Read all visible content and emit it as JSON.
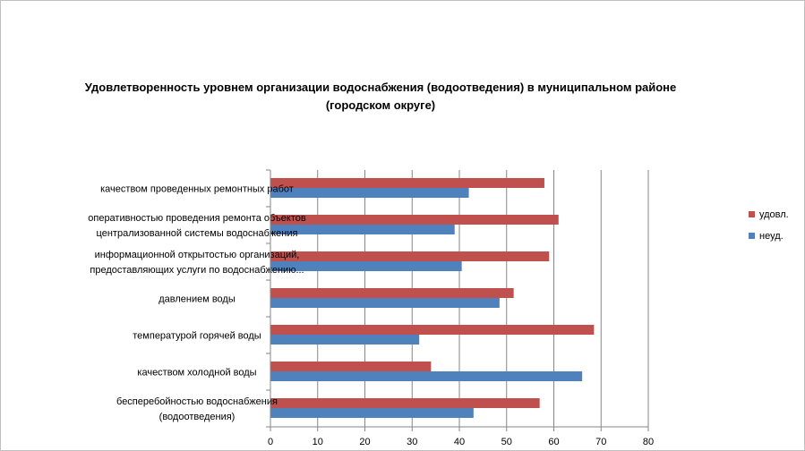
{
  "chart_data": {
    "type": "bar",
    "orientation": "horizontal",
    "title": "Удовлетворенность уровнем организации водоснабжения (водоотведения) в муниципальном районе (городском округе)",
    "categories": [
      [
        "качеством  проведенных  ремонтных работ"
      ],
      [
        "оперативностью  проведения  ремонта объектов",
        "централизованной системы водоснабжения"
      ],
      [
        "информационной открытостью организаций,",
        "предоставляющих услуги по водоснабжению..."
      ],
      [
        "давлением  воды"
      ],
      [
        "температурой  горячей воды"
      ],
      [
        "качеством  холодной воды"
      ],
      [
        "бесперебойностью  водоснабжения",
        "(водоотведения)"
      ]
    ],
    "series": [
      {
        "name": "удовл.",
        "color": "#c0504d",
        "values": [
          58,
          61,
          59,
          51.5,
          68.5,
          34,
          57
        ]
      },
      {
        "name": "неуд.",
        "color": "#4f81bd",
        "values": [
          42,
          39,
          40.5,
          48.5,
          31.5,
          66,
          43
        ]
      }
    ],
    "xlim": [
      0,
      80
    ],
    "xticks": [
      "0",
      "10",
      "20",
      "30",
      "40",
      "50",
      "60",
      "70",
      "80"
    ],
    "grid": true,
    "legend": "right"
  }
}
